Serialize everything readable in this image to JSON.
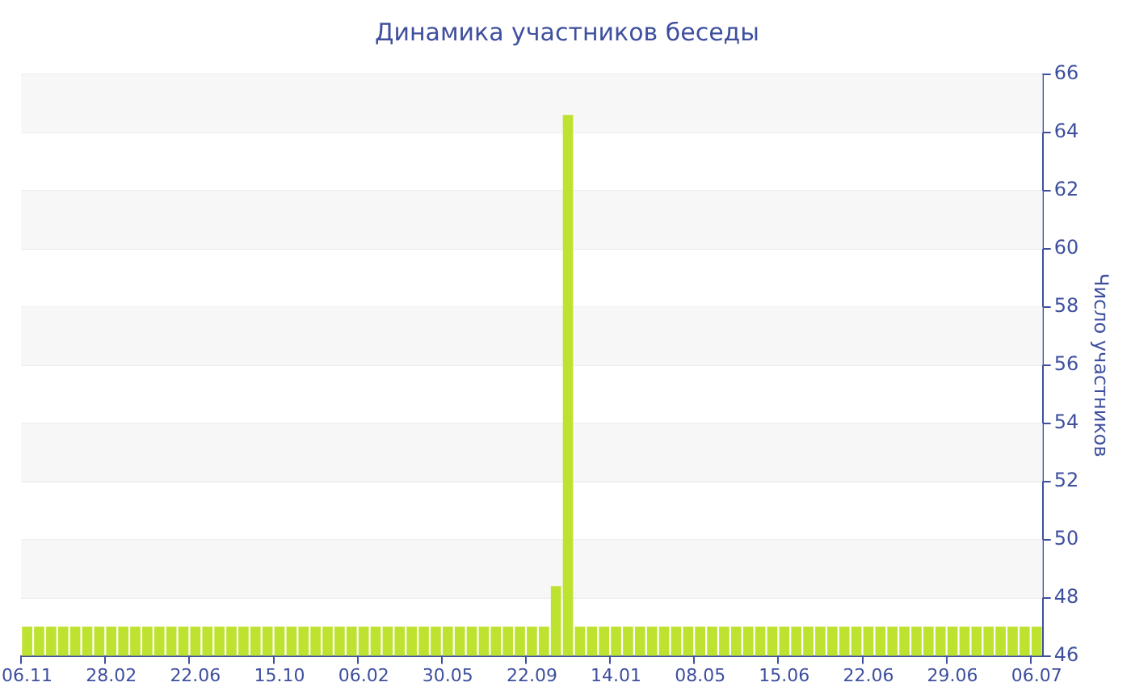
{
  "chart_data": {
    "type": "bar",
    "title": "Динамика участников беседы",
    "ylabel": "Число участников",
    "categories": [
      "06.11",
      null,
      null,
      null,
      null,
      null,
      null,
      "28.02",
      null,
      null,
      null,
      null,
      null,
      null,
      "22.06",
      null,
      null,
      null,
      null,
      null,
      null,
      "15.10",
      null,
      null,
      null,
      null,
      null,
      null,
      "06.02",
      null,
      null,
      null,
      null,
      null,
      null,
      "30.05",
      null,
      null,
      null,
      null,
      null,
      null,
      "22.09",
      null,
      null,
      null,
      null,
      null,
      null,
      "14.01",
      null,
      null,
      null,
      null,
      null,
      null,
      "08.05",
      null,
      null,
      null,
      null,
      null,
      null,
      "15.06",
      null,
      null,
      null,
      null,
      null,
      null,
      "22.06",
      null,
      null,
      null,
      null,
      null,
      null,
      "29.06",
      null,
      null,
      null,
      null,
      null,
      null,
      "06.07"
    ],
    "values": [
      47,
      47,
      47,
      47,
      47,
      47,
      47,
      47,
      47,
      47,
      47,
      47,
      47,
      47,
      47,
      47,
      47,
      47,
      47,
      47,
      47,
      47,
      47,
      47,
      47,
      47,
      47,
      47,
      47,
      47,
      47,
      47,
      47,
      47,
      47,
      47,
      47,
      47,
      47,
      47,
      47,
      47,
      47,
      47,
      48.4,
      64.6,
      47,
      47,
      47,
      47,
      47,
      47,
      47,
      47,
      47,
      47,
      47,
      47,
      47,
      47,
      47,
      47,
      47,
      47,
      47,
      47,
      47,
      47,
      47,
      47,
      47,
      47,
      47,
      47,
      47,
      47,
      47,
      47,
      47,
      47,
      47,
      47,
      47,
      47,
      47
    ],
    "color": "#bde22f",
    "ylim": [
      46,
      66
    ],
    "yticks": [
      46,
      48,
      50,
      52,
      54,
      56,
      58,
      60,
      62,
      64,
      66
    ],
    "grid": "y"
  }
}
